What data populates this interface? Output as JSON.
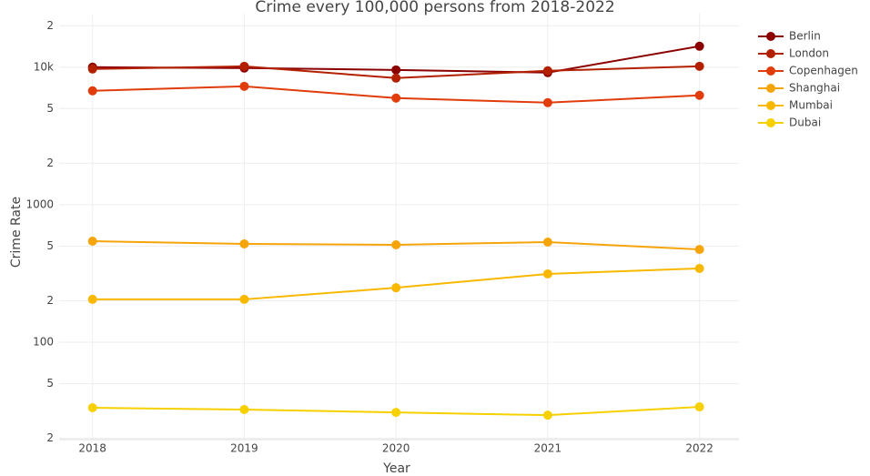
{
  "chart_data": {
    "type": "line",
    "title": "Crime every 100,000 persons from 2018-2022",
    "x_label": "Year",
    "y_label": "Crime Rate",
    "x": [
      2018,
      2019,
      2020,
      2021,
      2022
    ],
    "xlim": [
      2017.78,
      2022.26
    ],
    "xticks": [
      2018,
      2019,
      2020,
      2021,
      2022
    ],
    "y_scale": "log",
    "ylim": [
      19.6,
      24500
    ],
    "yticks": [
      {
        "value": 20,
        "label": "2"
      },
      {
        "value": 50,
        "label": "5"
      },
      100,
      {
        "value": 200,
        "label": "2"
      },
      {
        "value": 500,
        "label": "5"
      },
      1000,
      {
        "value": 2000,
        "label": "2"
      },
      {
        "value": 5000,
        "label": "5"
      },
      {
        "value": 10000,
        "label": "10k"
      },
      {
        "value": 20000,
        "label": "2"
      }
    ],
    "grid": true,
    "legend": "top-right",
    "series": [
      {
        "name": "Berlin",
        "color": "#8b0000",
        "values": [
          10000,
          9850,
          9550,
          9130,
          14200
        ]
      },
      {
        "name": "London",
        "color": "#b32000",
        "values": [
          9700,
          10150,
          8330,
          9410,
          10150
        ]
      },
      {
        "name": "Copenhagen",
        "color": "#e03c0c",
        "values": [
          6730,
          7260,
          5960,
          5520,
          6240
        ]
      },
      {
        "name": "Shanghai",
        "color": "#f5a50a",
        "values": [
          543,
          519,
          511,
          535,
          473
        ]
      },
      {
        "name": "Mumbai",
        "color": "#f8b800",
        "values": [
          205,
          205,
          249,
          314,
          344
        ]
      },
      {
        "name": "Dubai",
        "color": "#f7d000",
        "values": [
          33.4,
          32.4,
          30.9,
          29.5,
          33.9
        ]
      }
    ]
  }
}
